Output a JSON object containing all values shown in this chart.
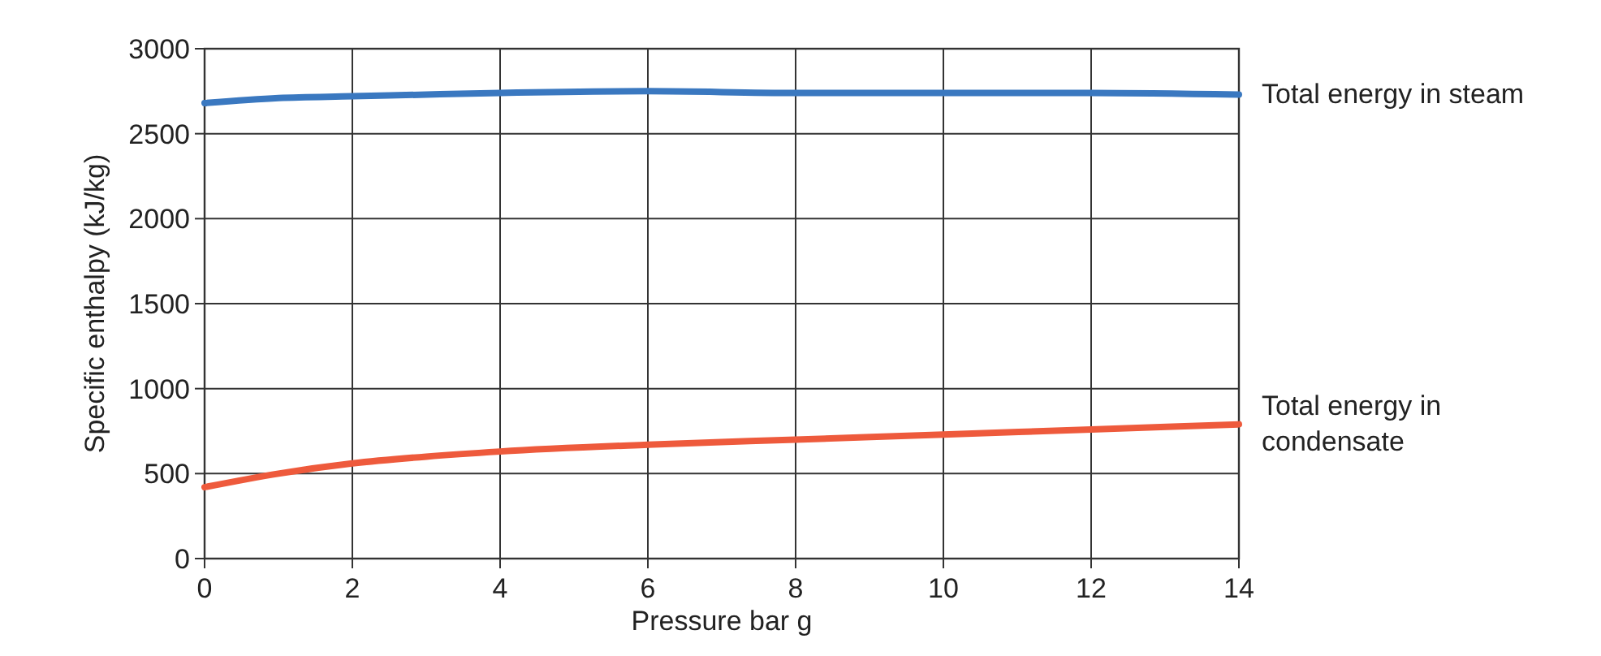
{
  "chart_data": {
    "type": "line",
    "xlabel": "Pressure bar g",
    "ylabel": "Specific enthalpy (kJ/kg)",
    "x": [
      0,
      1,
      2,
      3,
      4,
      6,
      8,
      10,
      12,
      14
    ],
    "series": [
      {
        "name": "Total energy in steam",
        "color": "#3a78c0",
        "values": [
          2680,
          2710,
          2720,
          2730,
          2740,
          2750,
          2740,
          2740,
          2740,
          2730
        ]
      },
      {
        "name": "Total energy in condensate",
        "color": "#ee5a3c",
        "values": [
          420,
          500,
          560,
          600,
          630,
          670,
          700,
          730,
          760,
          790
        ]
      }
    ],
    "xlim": [
      0,
      14
    ],
    "xticks": [
      0,
      2,
      4,
      6,
      8,
      10,
      12,
      14
    ],
    "ylim": [
      0,
      3000
    ],
    "yticks": [
      0,
      500,
      1000,
      1500,
      2000,
      2500,
      3000
    ],
    "grid": true,
    "marker": "none",
    "line_style": "solid"
  }
}
